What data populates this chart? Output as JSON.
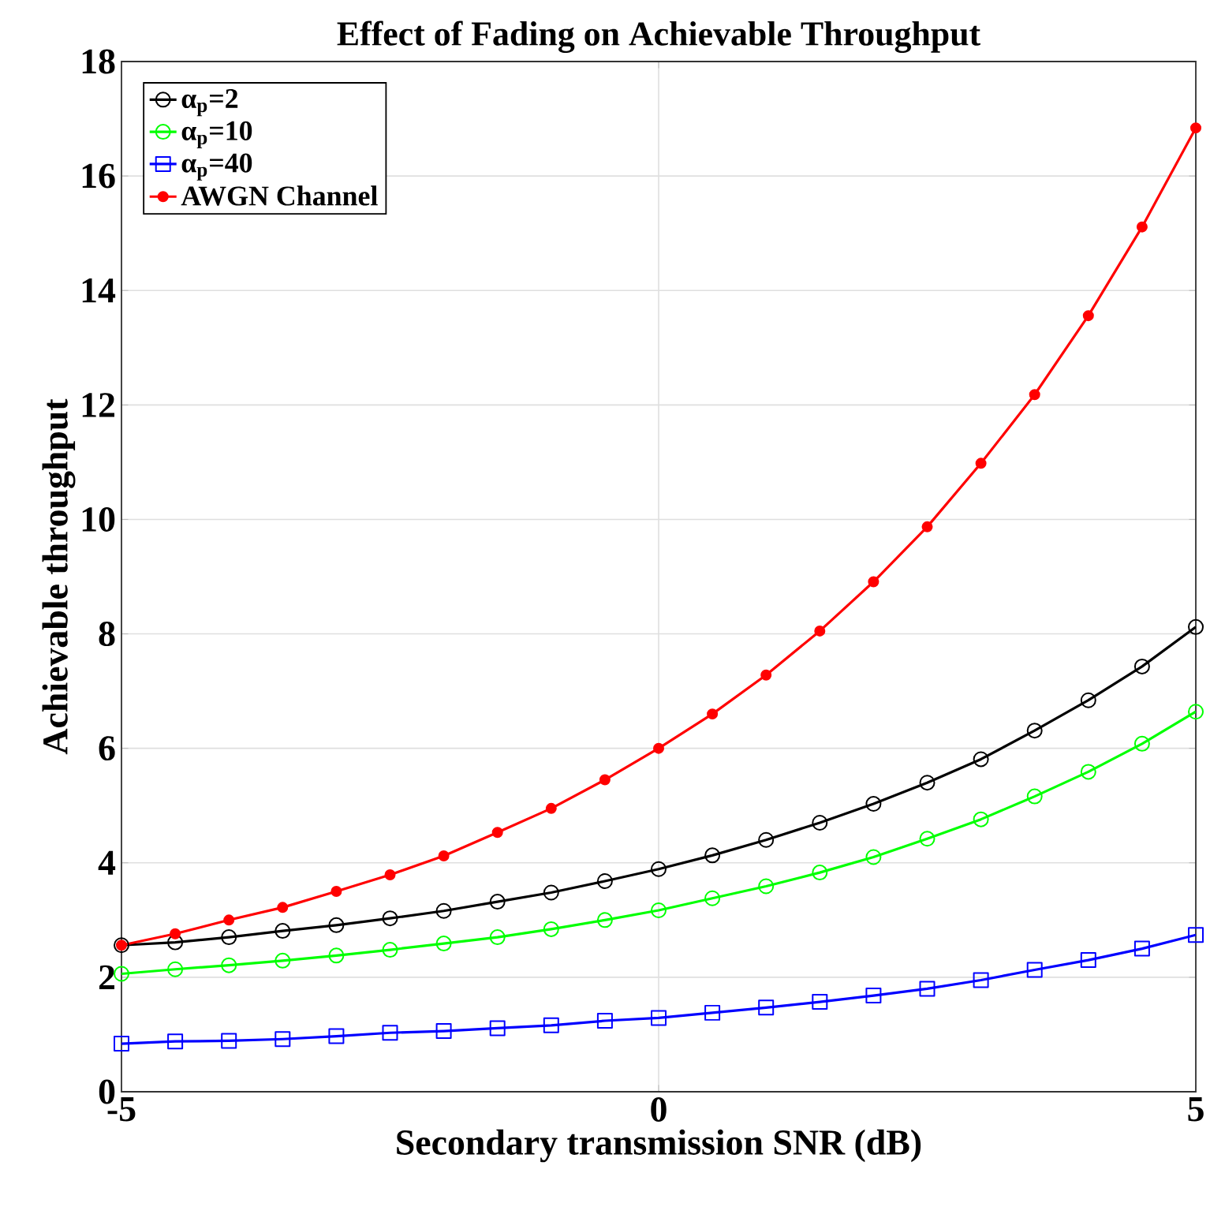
{
  "chart_data": {
    "type": "line",
    "title": "Effect of Fading on Achievable Throughput",
    "xlabel": "Secondary transmission SNR (dB)",
    "ylabel": "Achievable throughput",
    "x": [
      -5,
      -4.5,
      -4,
      -3.5,
      -3,
      -2.5,
      -2,
      -1.5,
      -1,
      -0.5,
      0,
      0.5,
      1,
      1.5,
      2,
      2.5,
      3,
      3.5,
      4,
      4.5,
      5
    ],
    "series": [
      {
        "name": "α$_{p}$=2",
        "color": "#000000",
        "marker": "circle",
        "values": [
          2.56,
          2.61,
          2.7,
          2.81,
          2.91,
          3.03,
          3.16,
          3.32,
          3.48,
          3.68,
          3.89,
          4.13,
          4.4,
          4.7,
          5.03,
          5.4,
          5.81,
          6.31,
          6.84,
          7.43,
          8.12
        ]
      },
      {
        "name": "α$_{p}$=10",
        "color": "#00ff00",
        "marker": "circle",
        "values": [
          2.06,
          2.14,
          2.21,
          2.29,
          2.38,
          2.48,
          2.59,
          2.7,
          2.84,
          3.0,
          3.17,
          3.38,
          3.59,
          3.83,
          4.1,
          4.42,
          4.76,
          5.16,
          5.59,
          6.08,
          6.64
        ]
      },
      {
        "name": "α$_{p}$=40",
        "color": "#0000ff",
        "marker": "square",
        "values": [
          0.84,
          0.88,
          0.89,
          0.92,
          0.97,
          1.03,
          1.06,
          1.11,
          1.16,
          1.24,
          1.29,
          1.38,
          1.47,
          1.57,
          1.68,
          1.8,
          1.95,
          2.13,
          2.3,
          2.5,
          2.74
        ]
      },
      {
        "name": "AWGN Channel",
        "color": "#ff0000",
        "marker": "circle",
        "values": [
          2.56,
          2.76,
          3.0,
          3.22,
          3.5,
          3.79,
          4.12,
          4.53,
          4.95,
          5.45,
          6.0,
          6.6,
          7.28,
          8.05,
          8.91,
          9.87,
          10.98,
          12.18,
          13.56,
          15.11,
          16.84
        ]
      }
    ],
    "xlim": [
      -5,
      5
    ],
    "ylim": [
      0,
      18
    ],
    "xticks": [
      -5,
      0,
      5
    ],
    "yticks": [
      0,
      2,
      4,
      6,
      8,
      10,
      12,
      14,
      16,
      18
    ],
    "grid": true,
    "legend": "top left",
    "line_style": "solid"
  }
}
